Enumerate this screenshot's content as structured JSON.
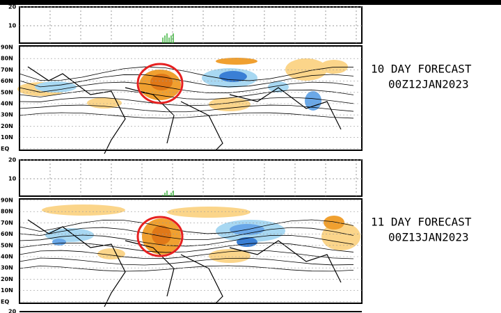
{
  "panels": [
    {
      "strip_ticks": [
        "20",
        "10"
      ],
      "lat_labels": [
        "90N",
        "80N",
        "70N",
        "60N",
        "50N",
        "40N",
        "30N",
        "20N",
        "10N",
        "EQ"
      ],
      "forecast": "10 DAY FORECAST",
      "date": "00Z12JAN2023"
    },
    {
      "strip_ticks": [
        "20",
        "10"
      ],
      "lat_labels": [
        "90N",
        "80N",
        "70N",
        "60N",
        "50N",
        "40N",
        "30N",
        "20N",
        "10N",
        "EQ"
      ],
      "forecast": "11 DAY FORECAST",
      "date": "00Z13JAN2023"
    }
  ],
  "next_panel_tick": "20"
}
